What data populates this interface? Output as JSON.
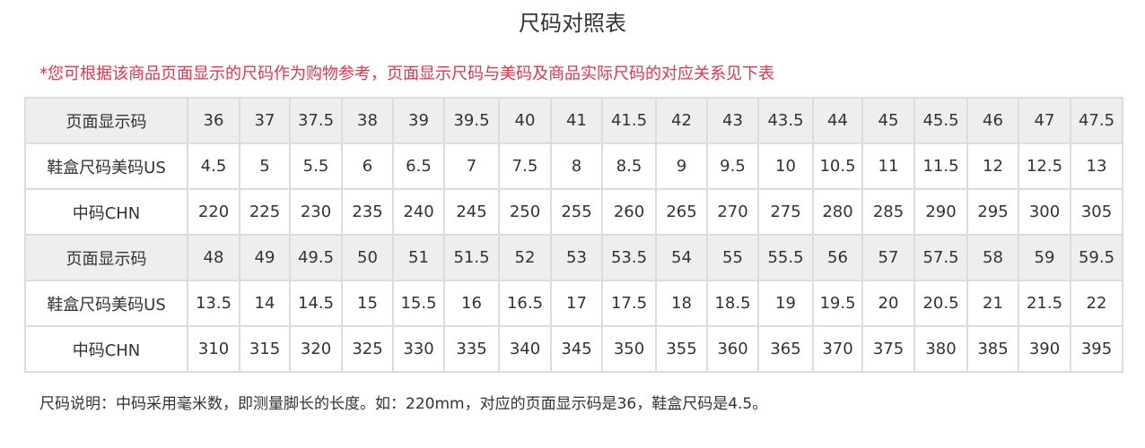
{
  "title": "尺码对照表",
  "notice": "*您可根据该商品页面显示的尺码作为购物参考，页面显示尺码与美码及商品实际尺码的对应关系见下表",
  "colors": {
    "notice": "#e8334a",
    "header_row_bg": "#eeeeee",
    "border": "#dcdcdc"
  },
  "table": {
    "rows": [
      {
        "header": true,
        "label": "页面显示码",
        "values": [
          "36",
          "37",
          "37.5",
          "38",
          "39",
          "39.5",
          "40",
          "41",
          "41.5",
          "42",
          "43",
          "43.5",
          "44",
          "45",
          "45.5",
          "46",
          "47",
          "47.5"
        ]
      },
      {
        "header": false,
        "label": "鞋盒尺码美码US",
        "values": [
          "4.5",
          "5",
          "5.5",
          "6",
          "6.5",
          "7",
          "7.5",
          "8",
          "8.5",
          "9",
          "9.5",
          "10",
          "10.5",
          "11",
          "11.5",
          "12",
          "12.5",
          "13"
        ]
      },
      {
        "header": false,
        "label": "中码CHN",
        "values": [
          "220",
          "225",
          "230",
          "235",
          "240",
          "245",
          "250",
          "255",
          "260",
          "265",
          "270",
          "275",
          "280",
          "285",
          "290",
          "295",
          "300",
          "305"
        ]
      },
      {
        "header": true,
        "label": "页面显示码",
        "values": [
          "48",
          "49",
          "49.5",
          "50",
          "51",
          "51.5",
          "52",
          "53",
          "53.5",
          "54",
          "55",
          "55.5",
          "56",
          "57",
          "57.5",
          "58",
          "59",
          "59.5"
        ]
      },
      {
        "header": false,
        "label": "鞋盒尺码美码US",
        "values": [
          "13.5",
          "14",
          "14.5",
          "15",
          "15.5",
          "16",
          "16.5",
          "17",
          "17.5",
          "18",
          "18.5",
          "19",
          "19.5",
          "20",
          "20.5",
          "21",
          "21.5",
          "22"
        ]
      },
      {
        "header": false,
        "label": "中码CHN",
        "values": [
          "310",
          "315",
          "320",
          "325",
          "330",
          "335",
          "340",
          "345",
          "350",
          "355",
          "360",
          "365",
          "370",
          "375",
          "380",
          "385",
          "390",
          "395"
        ]
      }
    ]
  },
  "note": "尺码说明：中码采用毫米数，即测量脚长的长度。如：220mm，对应的页面显示码是36，鞋盒尺码是4.5。"
}
